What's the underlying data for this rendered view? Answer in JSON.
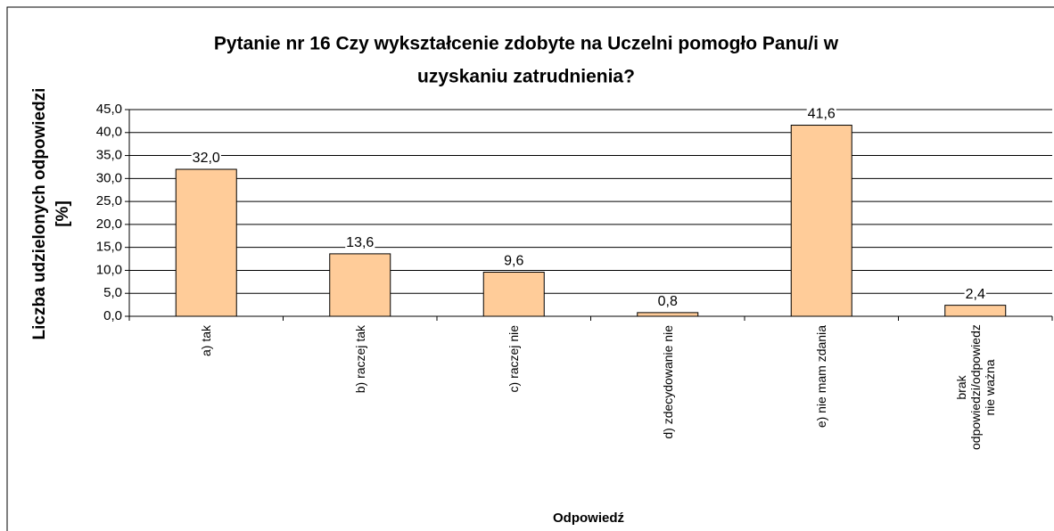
{
  "chart_data": {
    "type": "bar",
    "title": [
      "Pytanie nr 16 Czy wykształcenie zdobyte na Uczelni pomogło Panu/i w",
      "uzyskaniu zatrudnienia?"
    ],
    "y_label": [
      "Liczba udzielonych odpowiedzi",
      "[%]"
    ],
    "x_label": "Odpowiedź",
    "categories": [
      "a) tak",
      "b) raczej tak",
      "c) raczej nie",
      "d) zdecydowanie nie",
      "e) nie mam zdania",
      "brak odpowiedzi/odpowiedz nie ważna"
    ],
    "values": [
      32.0,
      13.6,
      9.6,
      0.8,
      41.6,
      2.4
    ],
    "value_labels": [
      "32,0",
      "13,6",
      "9,6",
      "0,8",
      "41,6",
      "2,4"
    ],
    "color": "#ffcc99",
    "ylim": [
      0,
      45
    ],
    "yticks": [
      {
        "value": 0,
        "label": "0,0"
      },
      {
        "value": 5,
        "label": "5,0"
      },
      {
        "value": 10,
        "label": "10,0"
      },
      {
        "value": 15,
        "label": "15,0"
      },
      {
        "value": 20,
        "label": "20,0"
      },
      {
        "value": 25,
        "label": "25,0"
      },
      {
        "value": 30,
        "label": "30,0"
      },
      {
        "value": 35,
        "label": "35,0"
      },
      {
        "value": 40,
        "label": "40,0"
      },
      {
        "value": 45,
        "label": "45,0"
      }
    ],
    "grid": true
  }
}
